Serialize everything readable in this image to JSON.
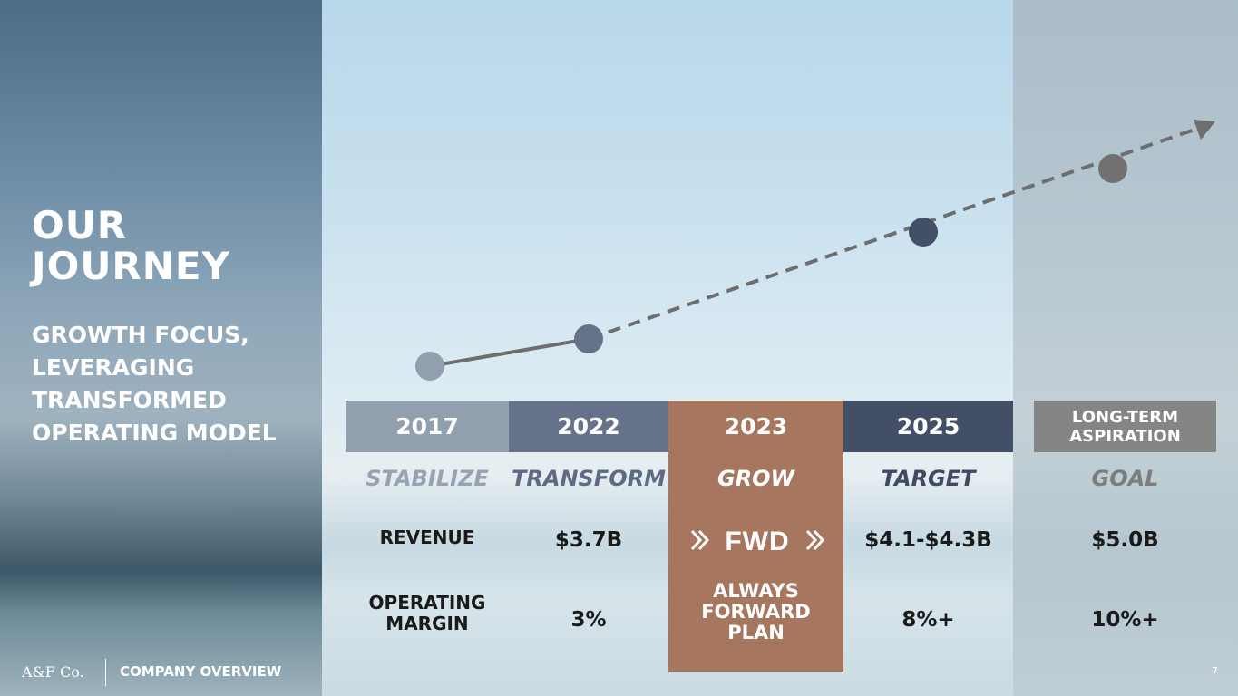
{
  "slide": {
    "title_line1": "OUR",
    "title_line2": "JOURNEY",
    "subtitle_lines": [
      "GROWTH FOCUS,",
      "LEVERAGING",
      "TRANSFORMED",
      "OPERATING MODEL"
    ],
    "footer_logo": "A&F Co.",
    "footer_section": "COMPANY OVERVIEW",
    "page_number": "7"
  },
  "columns": [
    {
      "year": "2017",
      "stage": "STABILIZE",
      "revenue": "",
      "margin": "",
      "color": "#929faf",
      "stage_color": "#96a3b2"
    },
    {
      "year": "2022",
      "stage": "TRANSFORM",
      "revenue": "$3.7B",
      "margin": "3%",
      "color": "#65728a",
      "stage_color": "#5e6b84"
    },
    {
      "year": "2023",
      "stage": "GROW",
      "color": "#a7765e",
      "stage_color": "#ffffff"
    },
    {
      "year": "2025",
      "stage": "TARGET",
      "revenue": "$4.1-$4.3B",
      "margin": "8%+",
      "color": "#434f66",
      "stage_color": "#3f4b63"
    },
    {
      "year_line1": "LONG-TERM",
      "year_line2": "ASPIRATION",
      "stage": "GOAL",
      "revenue": "$5.0B",
      "margin": "10%+",
      "color": "#858585",
      "stage_color": "#7d7d7d"
    }
  ],
  "row_labels": {
    "revenue": "REVENUE",
    "margin_line1": "OPERATING",
    "margin_line2": "MARGIN"
  },
  "grow_column": {
    "logo_text": "FWD",
    "plan_lines": [
      "ALWAYS",
      "FORWARD",
      "PLAN"
    ]
  },
  "colors": {
    "grow": "#a7765e",
    "trend_line": "#6e6e6e"
  }
}
